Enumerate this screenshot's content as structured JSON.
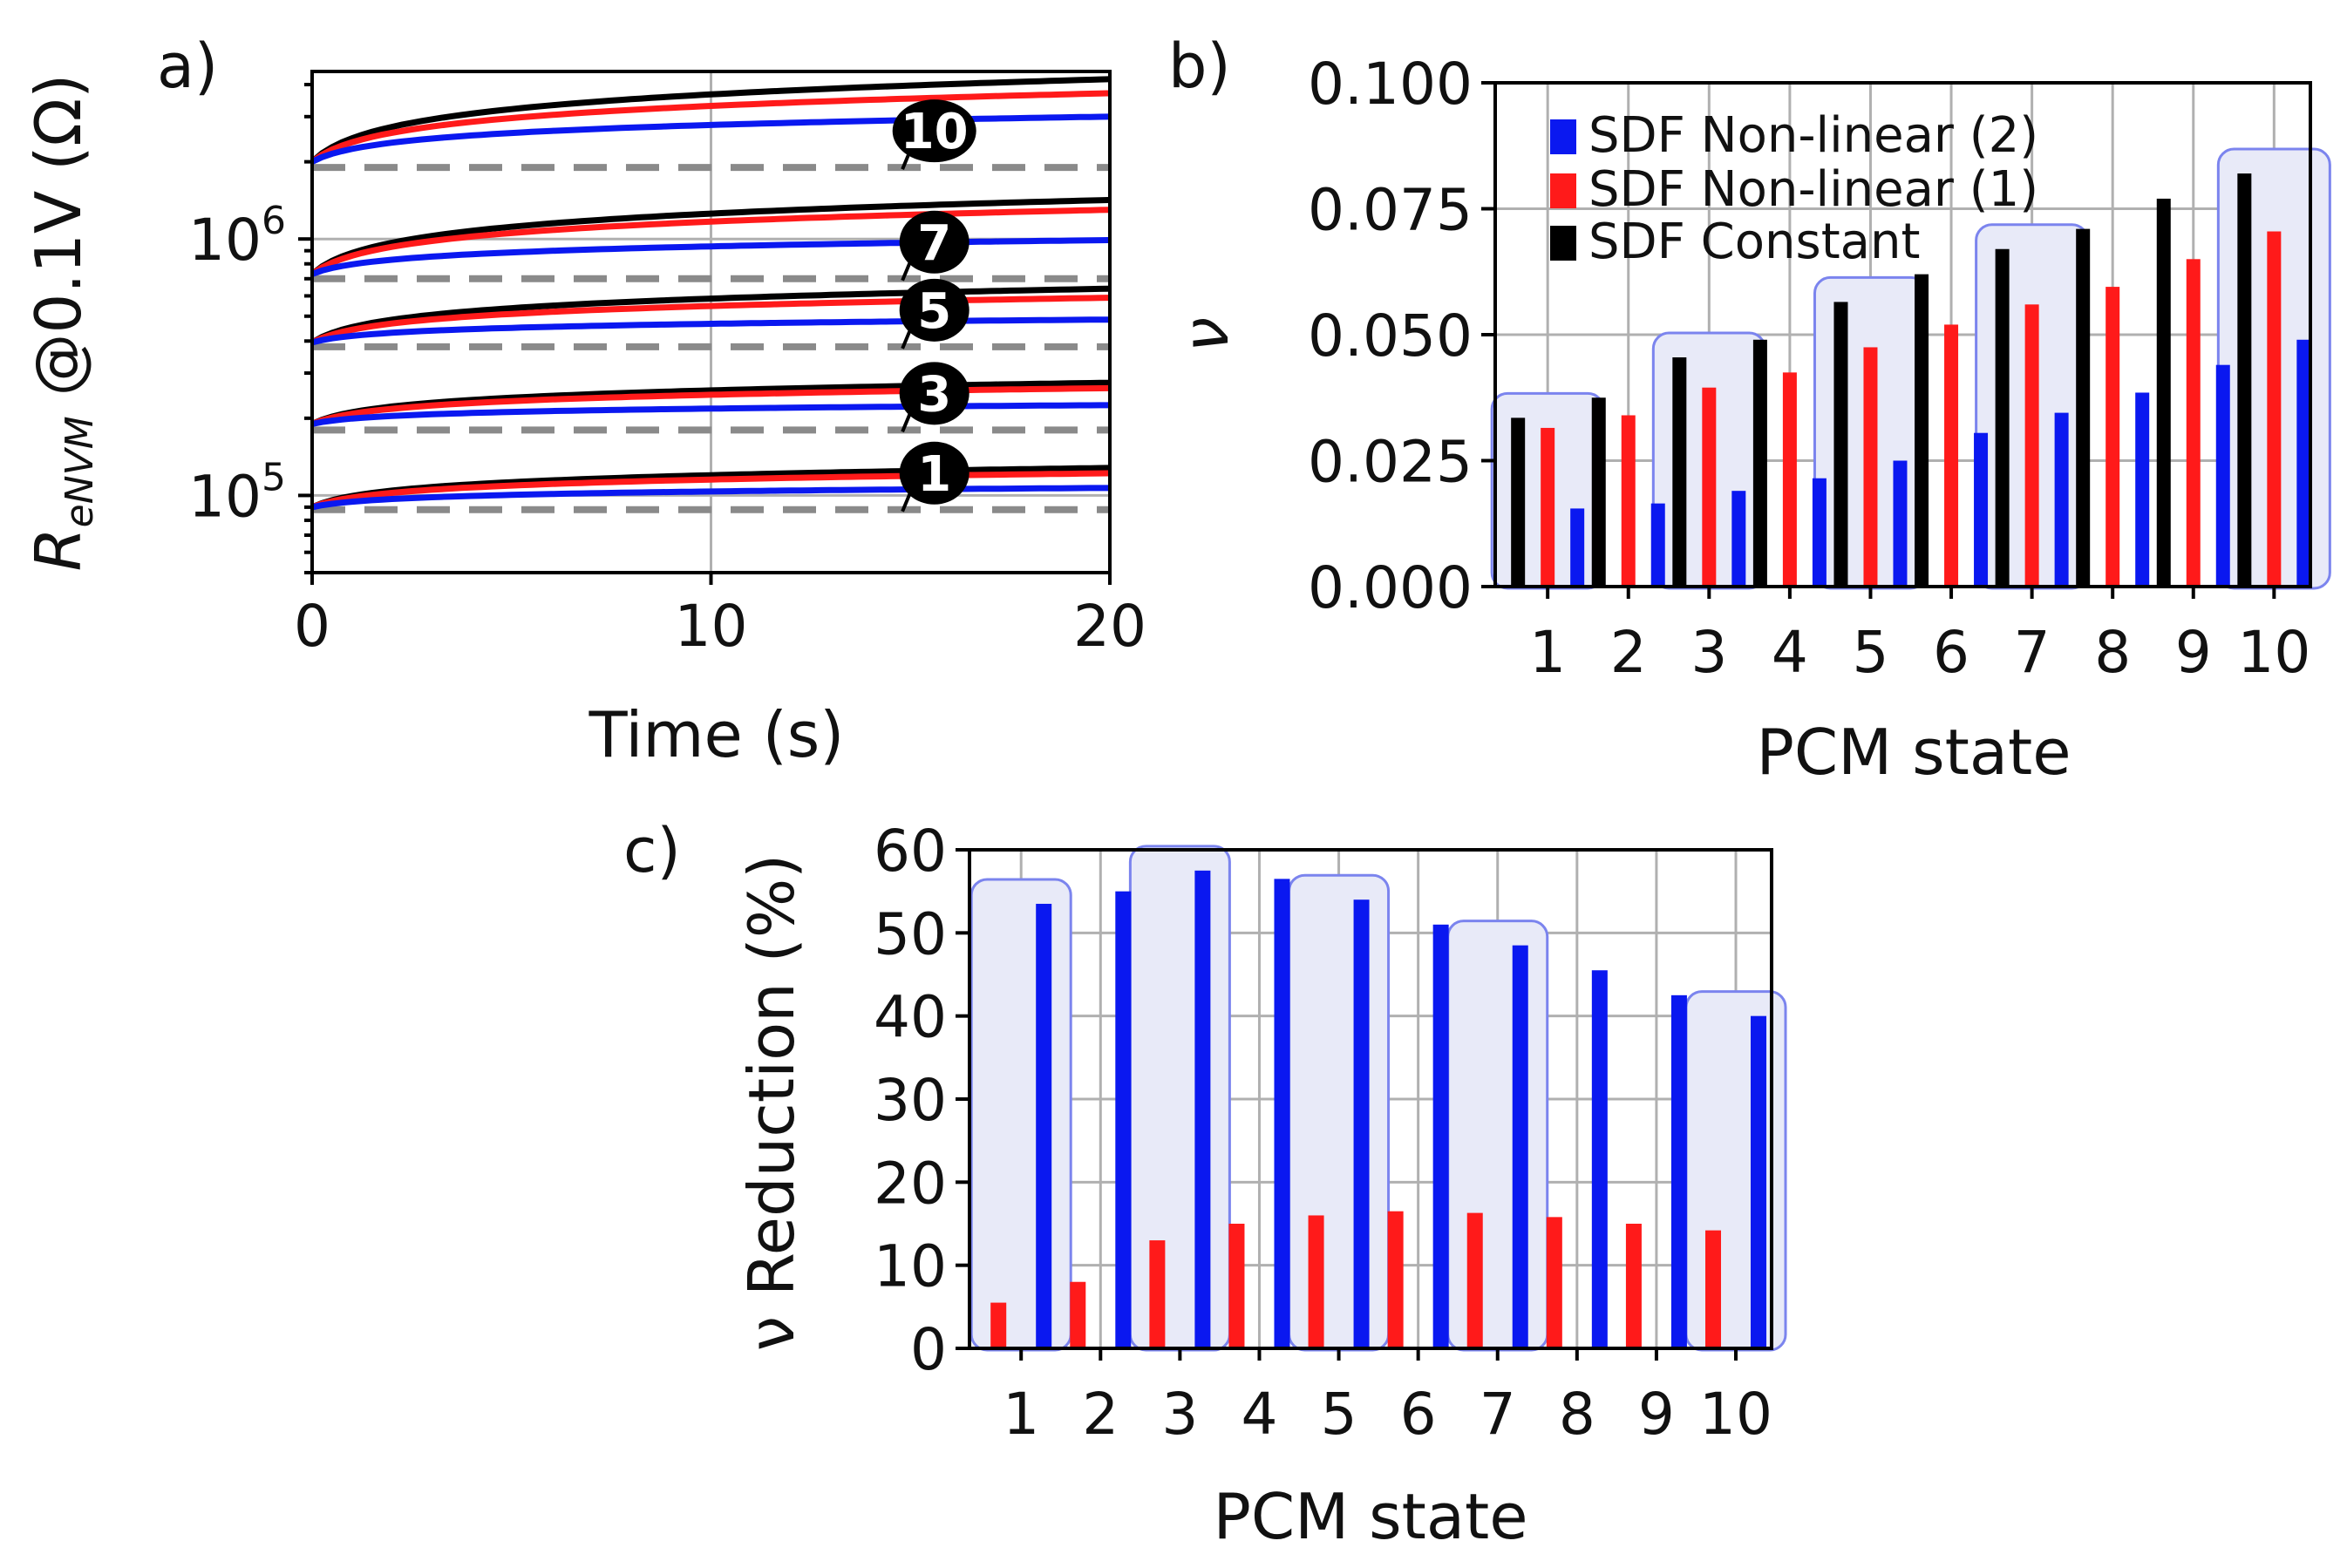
{
  "colors": {
    "nonlinear2": "#0a18f0",
    "nonlinear1": "#ff1a1a",
    "constant": "#000000",
    "floor": "#8a8a8a",
    "highlight_stroke": "#7b84ee",
    "highlight_fill": "#e8eaf8"
  },
  "chart_data": [
    {
      "panel": "a)",
      "type": "line",
      "xlabel": "Time (s)",
      "ylabel_main": "R",
      "ylabel_sub": "eNVM",
      "ylabel_rest": " @0.1V (Ω)",
      "xticks": [
        "0",
        "10",
        "20"
      ],
      "xlim": [
        0,
        20
      ],
      "yscale": "log",
      "ylim": [
        50000,
        4500000
      ],
      "yticks": [
        {
          "base": "10",
          "exp": "5",
          "value": 100000
        },
        {
          "base": "10",
          "exp": "6",
          "value": 1000000
        }
      ],
      "series_names": [
        "SDF Non-linear (2)",
        "SDF Non-linear (1)",
        "SDF Constant"
      ],
      "states": [
        {
          "label": "1",
          "floor": 88000,
          "start": 90000,
          "end": [
            107000,
            122000,
            128000
          ]
        },
        {
          "label": "3",
          "floor": 180000,
          "start": 190000,
          "end": [
            225000,
            262000,
            275000
          ]
        },
        {
          "label": "5",
          "floor": 380000,
          "start": 395000,
          "end": [
            485000,
            590000,
            640000
          ]
        },
        {
          "label": "7",
          "floor": 700000,
          "start": 730000,
          "end": [
            990000,
            1300000,
            1420000
          ]
        },
        {
          "label": "10",
          "floor": 1900000,
          "start": 2000000,
          "end": [
            3000000,
            3700000,
            4200000
          ]
        }
      ]
    },
    {
      "panel": "b)",
      "type": "bar",
      "xlabel": "PCM state",
      "ylabel": "ν",
      "categories": [
        "1",
        "2",
        "3",
        "4",
        "5",
        "6",
        "7",
        "8",
        "9",
        "10"
      ],
      "yticks": [
        "0.000",
        "0.025",
        "0.050",
        "0.075",
        "0.100"
      ],
      "ylim": [
        0,
        0.1
      ],
      "highlighted": [
        "1",
        "3",
        "5",
        "7",
        "10"
      ],
      "series": [
        {
          "name": "SDF Constant",
          "values": [
            0.0335,
            0.0375,
            0.0455,
            0.049,
            0.0565,
            0.062,
            0.067,
            0.071,
            0.077,
            0.082
          ]
        },
        {
          "name": "SDF Non-linear (1)",
          "values": [
            0.0315,
            0.034,
            0.0395,
            0.0425,
            0.0475,
            0.052,
            0.056,
            0.0595,
            0.065,
            0.0705
          ]
        },
        {
          "name": "SDF Non-linear (2)",
          "values": [
            0.0155,
            0.0165,
            0.019,
            0.0215,
            0.025,
            0.0305,
            0.0345,
            0.0385,
            0.044,
            0.049
          ]
        }
      ],
      "legend": [
        "SDF Non-linear (2)",
        "SDF Non-linear (1)",
        "SDF Constant"
      ],
      "legend_position": "top-left"
    },
    {
      "panel": "c)",
      "type": "bar",
      "xlabel": "PCM state",
      "ylabel": "ν Reduction (%)",
      "categories": [
        "1",
        "2",
        "3",
        "4",
        "5",
        "6",
        "7",
        "8",
        "9",
        "10"
      ],
      "yticks": [
        "0",
        "10",
        "20",
        "30",
        "40",
        "50",
        "60"
      ],
      "ylim": [
        0,
        60
      ],
      "highlighted": [
        "1",
        "3",
        "5",
        "7",
        "10"
      ],
      "series": [
        {
          "name": "SDF Non-linear (1)",
          "values": [
            5.5,
            8.0,
            13.0,
            15.0,
            16.0,
            16.5,
            16.3,
            15.8,
            15.0,
            14.2
          ]
        },
        {
          "name": "SDF Non-linear (2)",
          "values": [
            53.5,
            55.0,
            57.5,
            56.5,
            54.0,
            51.0,
            48.5,
            45.5,
            42.5,
            40.0
          ]
        }
      ]
    }
  ]
}
